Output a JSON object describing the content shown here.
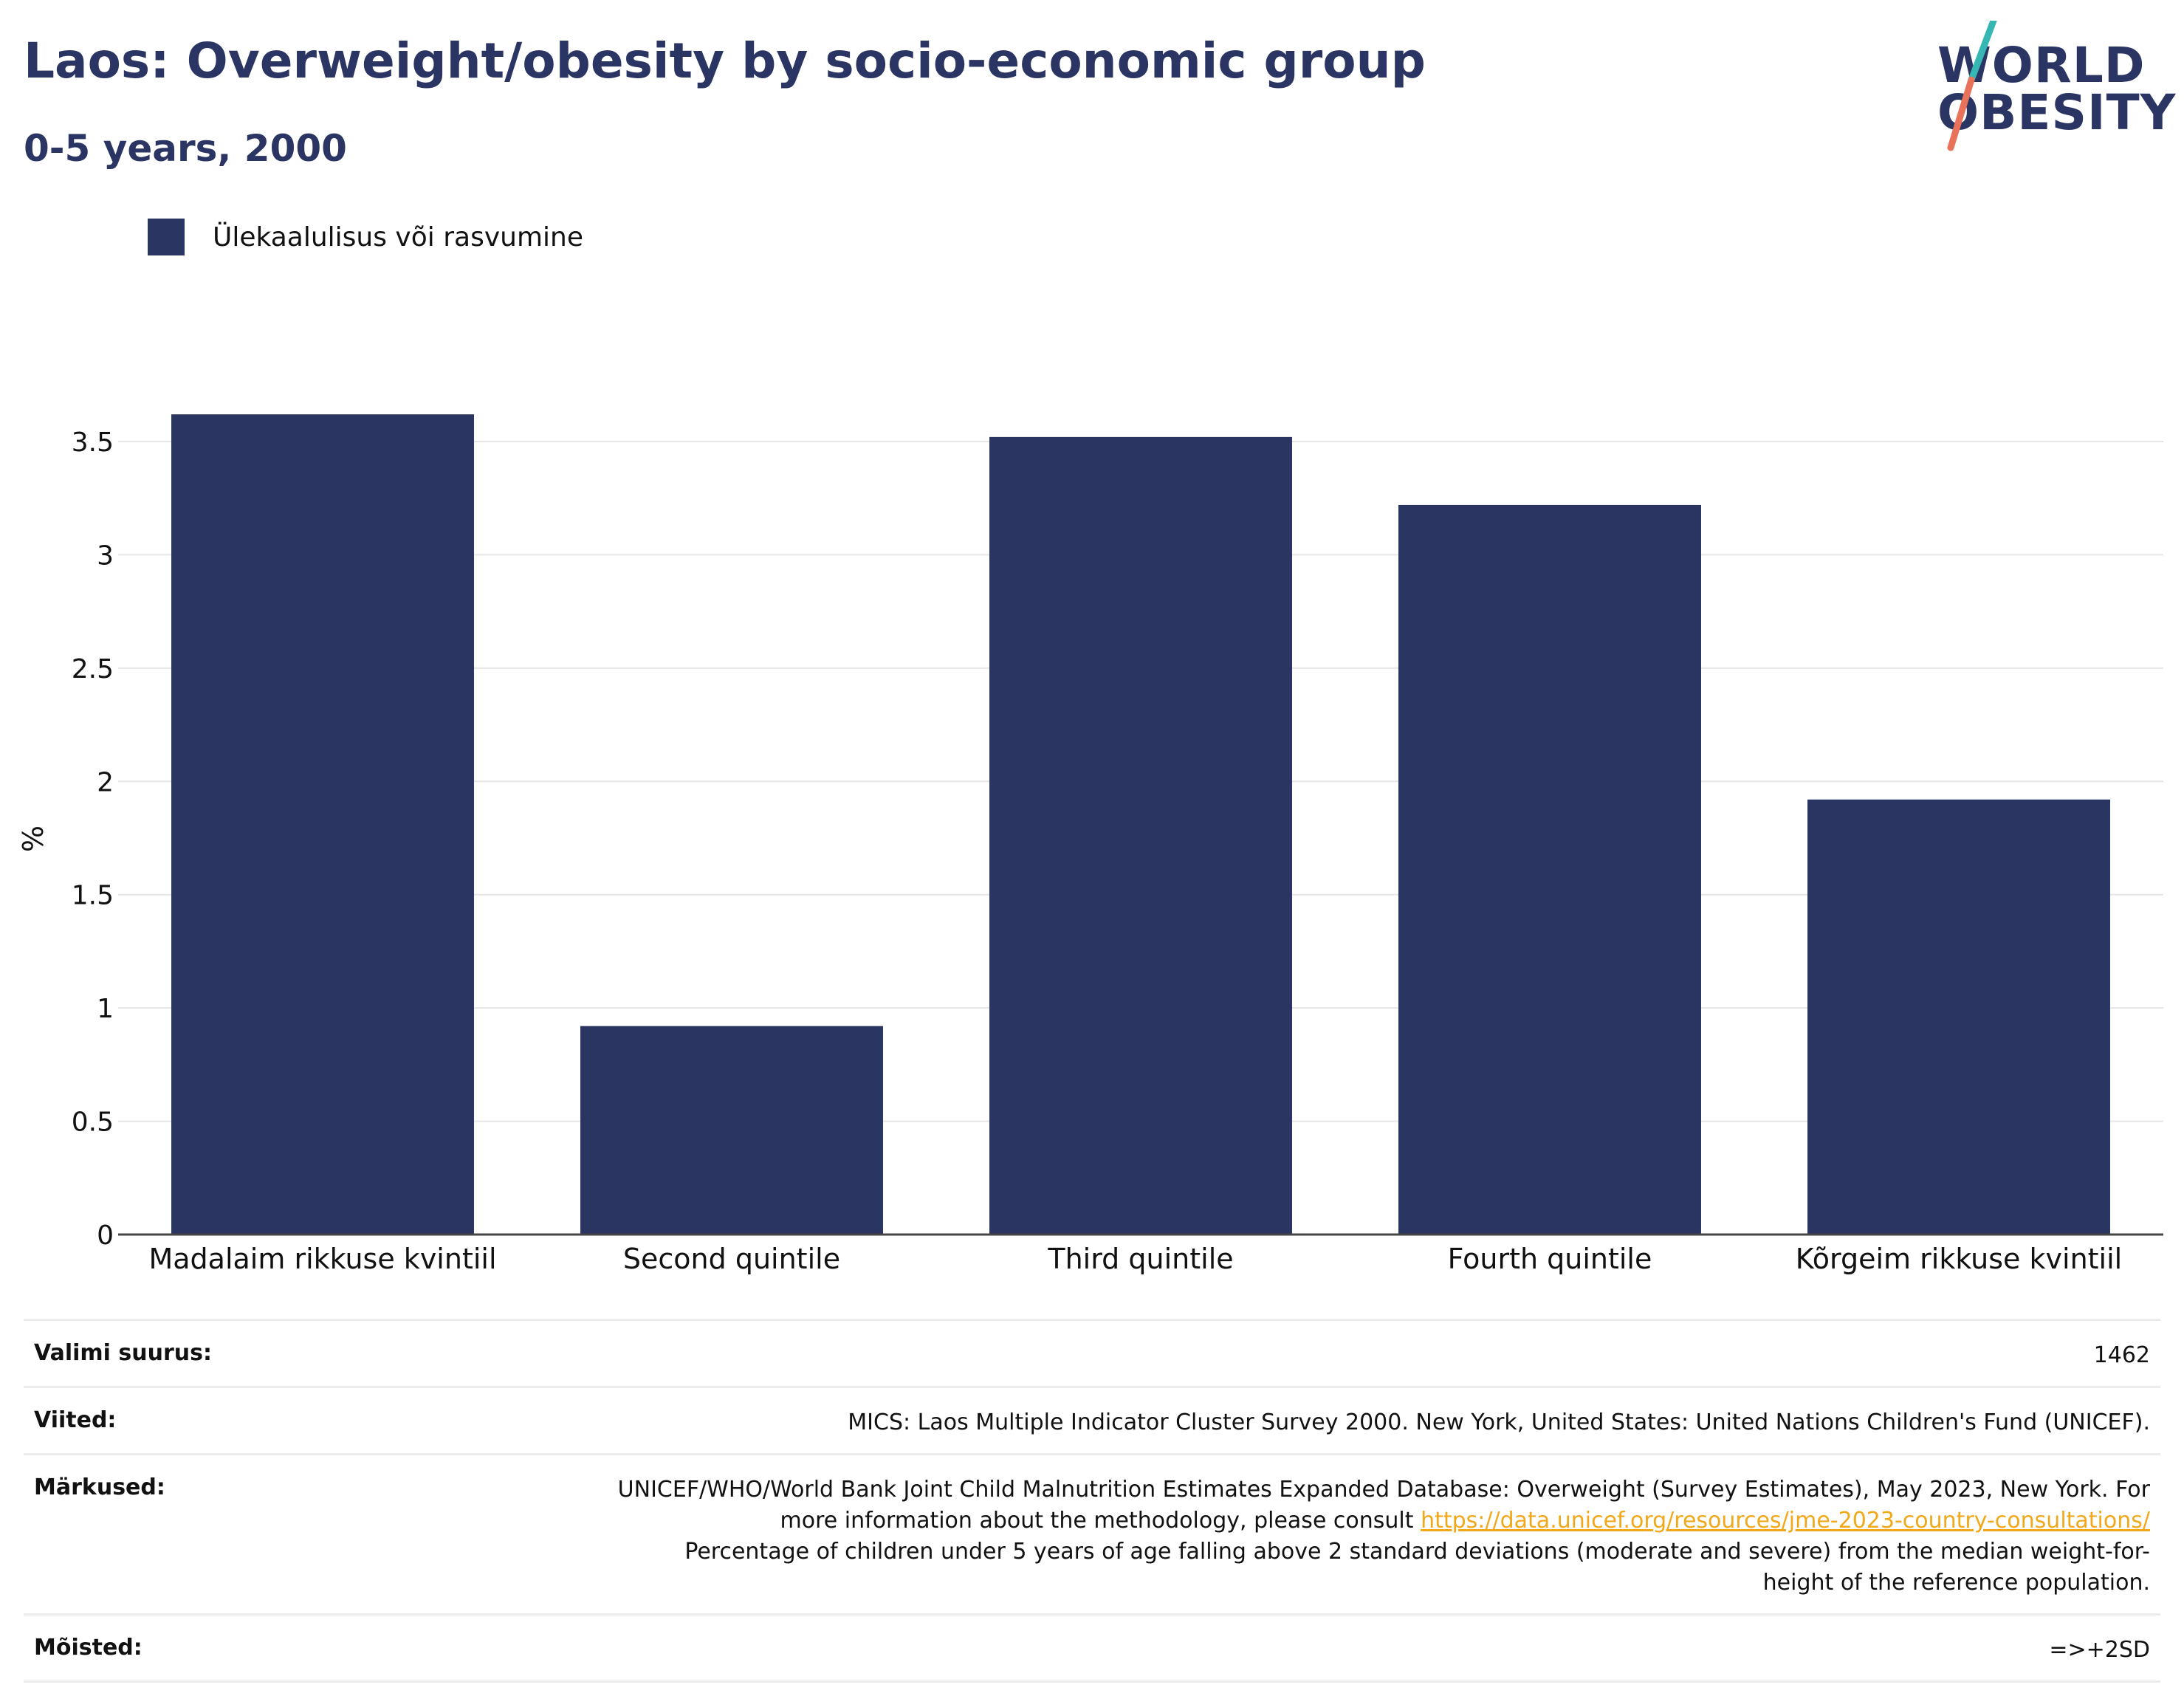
{
  "header": {
    "title": "Laos: Overweight/obesity by socio-economic group",
    "subtitle": "0-5 years, 2000"
  },
  "logo": {
    "line1": "WORLD",
    "line2": "OBESITY",
    "colors": {
      "text": "#2b3563",
      "slash_top": "#36b7b4",
      "slash_bottom": "#e8735a"
    }
  },
  "legend": {
    "label": "Ülekaalulisus või rasvumine",
    "color": "#2a3562"
  },
  "chart_data": {
    "type": "bar",
    "categories": [
      "Madalaim rikkuse kvintiil",
      "Second quintile",
      "Third quintile",
      "Fourth quintile",
      "Kõrgeim rikkuse kvintiil"
    ],
    "series": [
      {
        "name": "Ülekaalulisus või rasvumine",
        "values": [
          3.62,
          0.92,
          3.52,
          3.22,
          1.92
        ],
        "color": "#2a3562"
      }
    ],
    "ylabel": "%",
    "ylim": [
      0,
      3.5
    ],
    "yticks": [
      0,
      0.5,
      1,
      1.5,
      2,
      2.5,
      3,
      3.5
    ],
    "ytick_labels": [
      "0",
      "0.5",
      "1",
      "1.5",
      "2",
      "2.5",
      "3",
      "3.5"
    ],
    "grid": true,
    "legend_position": "top-left"
  },
  "footer": {
    "sample_size": {
      "label": "Valimi suurus:",
      "value": "1462"
    },
    "references": {
      "label": "Viited:",
      "value": "MICS: Laos Multiple Indicator Cluster Survey 2000. New York, United States: United Nations Children's Fund (UNICEF)."
    },
    "notes": {
      "label": "Märkused:",
      "text_before_link": "UNICEF/WHO/World Bank Joint Child Malnutrition Estimates Expanded Database: Overweight (Survey Estimates), May 2023, New York. For more information about the methodology, please consult",
      "link": "https://data.unicef.org/resources/jme-2023-country-consultations/",
      "text_after_link": "Percentage of children under 5 years of age falling above 2 standard deviations (moderate and severe) from the median weight-for-height of the reference population."
    },
    "definitions": {
      "label": "Mõisted:",
      "value": "=>+2SD"
    }
  }
}
